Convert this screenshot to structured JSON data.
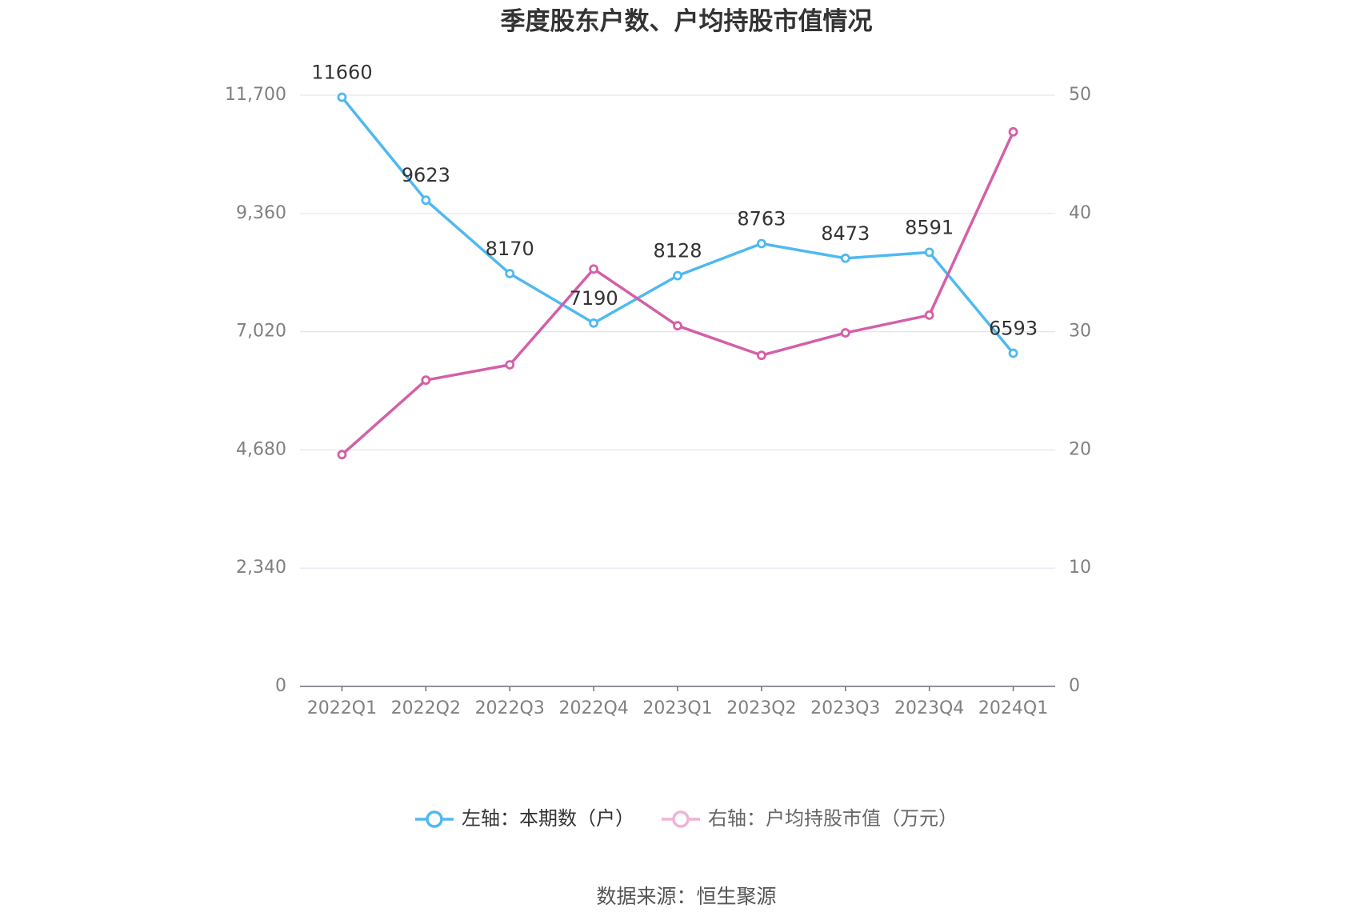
{
  "title": "季度股东户数、户均持股市值情况",
  "source": "数据来源：恒生聚源",
  "colors": {
    "left_series": "#4fb9f0",
    "right_series": "#d45fa8",
    "right_legend_marker": "#efb3d6",
    "grid": "#e0e6f1",
    "axis": "#6e7079",
    "axis_label": "#808080",
    "text": "#333333",
    "legend_text_left": "#333333",
    "legend_text_right": "#666666"
  },
  "chart_data": {
    "type": "line",
    "title": "季度股东户数、户均持股市值情况",
    "categories": [
      "2022Q1",
      "2022Q2",
      "2022Q3",
      "2022Q4",
      "2023Q1",
      "2023Q2",
      "2023Q3",
      "2023Q4",
      "2024Q1"
    ],
    "series": [
      {
        "name": "左轴：本期数（户）",
        "y_axis": 0,
        "show_labels": true,
        "values": [
          11660,
          9623,
          8170,
          7190,
          8128,
          8763,
          8473,
          8591,
          6593
        ]
      },
      {
        "name": "右轴：户均持股市值（万元）",
        "y_axis": 1,
        "show_labels": false,
        "values": [
          19.6,
          25.9,
          27.2,
          35.3,
          30.5,
          28.0,
          29.9,
          31.4,
          46.9
        ]
      }
    ],
    "y_left": {
      "ylim": [
        0,
        11700
      ],
      "ticks": [
        0,
        2340,
        4680,
        7020,
        9360,
        11700
      ],
      "tick_labels": [
        "0",
        "2,340",
        "4,680",
        "7,020",
        "9,360",
        "11,700"
      ]
    },
    "y_right": {
      "ylim": [
        0,
        50
      ],
      "ticks": [
        0,
        10,
        20,
        30,
        40,
        50
      ],
      "tick_labels": [
        "0",
        "10",
        "20",
        "30",
        "40",
        "50"
      ]
    },
    "grid": true,
    "legend_position": "bottom"
  }
}
